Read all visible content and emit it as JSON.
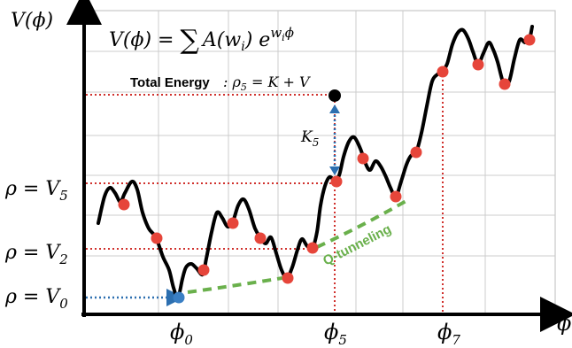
{
  "colors": {
    "curve": "#000000",
    "grid": "#cccccc",
    "guide_red": "#d0312d",
    "guide_blue": "#2c6fb0",
    "dot_red": "#e6453a",
    "dot_blue": "#3a7fc4",
    "dot_black": "#000000",
    "tunnel_green": "#6ab04c"
  },
  "labels": {
    "y_axis": "V(ϕ)",
    "x_axis": "ϕ",
    "formula": "V(ϕ) = ∑ A(wᵢ) e^{wᵢϕ}",
    "formula_lhs": "V(ϕ) = ",
    "formula_sum": "∑",
    "formula_A": "A(w",
    "formula_i": "i",
    "formula_close": ") e",
    "formula_exp_w": "w",
    "formula_exp_i": "i",
    "formula_exp_phi": "ϕ",
    "total_energy_bold": "Total Energy",
    "total_energy_eq": ": ρ",
    "total_energy_sub": "5",
    "total_energy_rhs": " = K + V",
    "k5_main": "K",
    "k5_sub": "5",
    "rho_v5_main": "ρ = V",
    "rho_v5_sub": "5",
    "rho_v2_main": "ρ = V",
    "rho_v2_sub": "2",
    "rho_v0_main": "ρ = V",
    "rho_v0_sub": "0",
    "phi0_main": "ϕ",
    "phi0_sub": "0",
    "phi5_main": "ϕ",
    "phi5_sub": "5",
    "phi7_main": "ϕ",
    "phi7_sub": "7",
    "q_tunneling": "Q-tunneling"
  }
}
